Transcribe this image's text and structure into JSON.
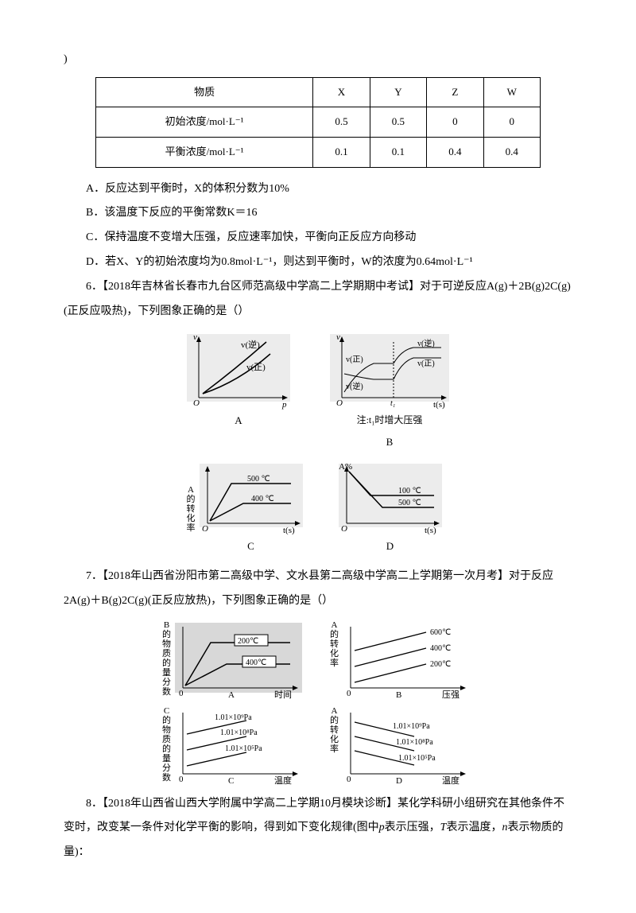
{
  "lead_paren": ")",
  "table": {
    "columns": [
      "物质",
      "X",
      "Y",
      "Z",
      "W"
    ],
    "rows": [
      [
        "初始浓度/mol·L⁻¹",
        "0.5",
        "0.5",
        "0",
        "0"
      ],
      [
        "平衡浓度/mol·L⁻¹",
        "0.1",
        "0.1",
        "0.4",
        "0.4"
      ]
    ]
  },
  "optA": "A．反应达到平衡时，X的体积分数为10%",
  "optB": "B．该温度下反应的平衡常数K＝16",
  "optC": "C．保持温度不变增大压强，反应速率加快，平衡向正反应方向移动",
  "optD": "D．若X、Y的初始浓度均为0.8mol·L⁻¹，则达到平衡时，W的浓度为0.64mol·L⁻¹",
  "q6": "6．【2018年吉林省长春市九台区师范高级中学高二上学期期中考试】对于可逆反应A(g)＋2B(g)2C(g)(正反应吸热)，下列图象正确的是（）",
  "fig6": {
    "a_label": "A",
    "b_label": "B",
    "c_label": "C",
    "d_label": "D",
    "v": "v",
    "p": "p",
    "ts": "t(s)",
    "o": "O",
    "vni": "v(逆)",
    "vzheng": "v(正)",
    "note_b": "注:t₁时增大压强",
    "t1": "t₁",
    "a_conv": "A\n的\n转\n化\n率",
    "a_pct": "A%",
    "c_500": "500 ℃",
    "c_400": "400 ℃",
    "c_100": "100 ℃"
  },
  "q7": "7．【2018年山西省汾阳市第二高级中学、文水县第二高级中学高二上学期第一次月考】对于反应2A(g)＋B(g)2C(g)(正反应放热)，下列图象正确的是（）",
  "fig7": {
    "a_label": "A",
    "b_label": "B",
    "c_label": "C",
    "d_label": "D",
    "b_mass": "B\n的\n物\n质\n的\n量\n分\n数",
    "c_mass": "C\n的\n物\n质\n的\n量\n分\n数",
    "a_conv": "A\n的\n转\n化\n率",
    "time": "时间",
    "pressure": "压强",
    "temp": "温度",
    "c200": "200℃",
    "c400": "400℃",
    "c600": "600℃",
    "pa9": "1.01×10⁹Pa",
    "pa8": "1.01×10⁸Pa",
    "pa5": "1.01×10⁵Pa"
  },
  "q8": "8．【2018年山西省山西大学附属中学高二上学期10月模块诊断】某化学科研小组研究在其他条件不变时，改变某一条件对化学平衡的影响，得到如下变化规律(图中p表示压强，T表示温度，n表示物质的量)："
}
